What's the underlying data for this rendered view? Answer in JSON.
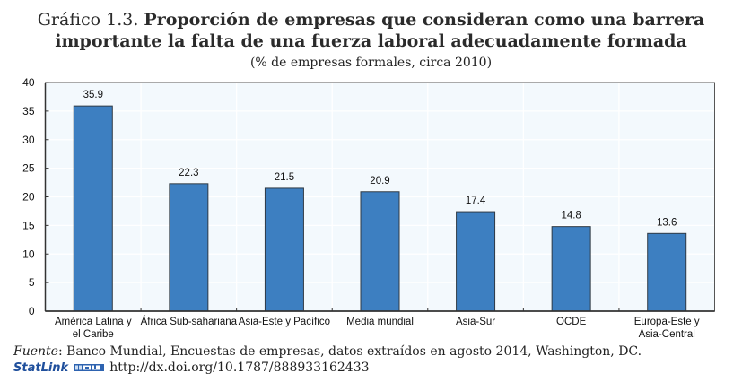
{
  "header": {
    "title_prefix": "Gráfico 1.3.",
    "title_line1_bold": "Proporción de empresas que consideran como una barrera",
    "title_line2": "importante la falta de una fuerza laboral adecuadamente formada",
    "subtitle": "(% de empresas formales, circa 2010)"
  },
  "footer": {
    "source_label": "Fuente",
    "source_text": ": Banco Mundial, Encuestas de empresas, datos extraídos en agosto 2014, Washington, DC.",
    "statlink_label": "StatLink",
    "statlink_icon": "statlink-logo-icon",
    "statlink_url": "http://dx.doi.org/10.1787/888933162433"
  },
  "colors": {
    "bar_fill": "#3d7fc1",
    "bar_stroke": "#2f3a45",
    "plot_background": "#f3f9fd",
    "gridline": "#ffffff",
    "axis": "#333333"
  },
  "chart_data": {
    "type": "bar",
    "title": "Proporción de empresas que consideran como una barrera importante la falta de una fuerza laboral adecuadamente formada",
    "subtitle": "(% de empresas formales, circa 2010)",
    "categories": [
      [
        "América Latina y",
        "el Caribe"
      ],
      [
        "África Sub-sahariana"
      ],
      [
        "Asia-Este y Pacífico"
      ],
      [
        "Media mundial"
      ],
      [
        "Asia-Sur"
      ],
      [
        "OCDE"
      ],
      [
        "Europa-Este y",
        "Asia-Central"
      ]
    ],
    "values": [
      35.9,
      22.3,
      21.5,
      20.9,
      17.4,
      14.8,
      13.6
    ],
    "data_labels": [
      "35.9",
      "22.3",
      "21.5",
      "20.9",
      "17.4",
      "14.8",
      "13.6"
    ],
    "xlabel": "",
    "ylabel": "",
    "ylim": [
      0,
      40
    ],
    "yticks": [
      0,
      5,
      10,
      15,
      20,
      25,
      30,
      35,
      40
    ],
    "grid": true,
    "legend": "none"
  }
}
